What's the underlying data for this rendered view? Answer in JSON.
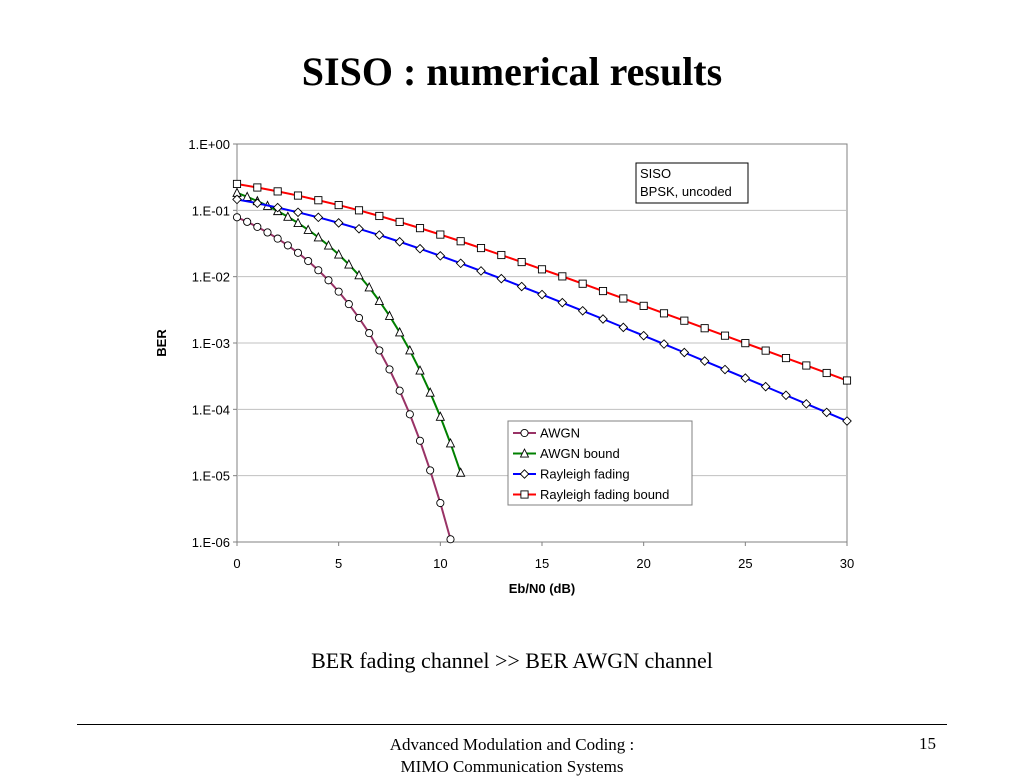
{
  "slide": {
    "title": "SISO : numerical results",
    "caption": "BER fading channel >> BER AWGN channel",
    "footer_line1": "Advanced Modulation and Coding :",
    "footer_line2": "MIMO Communication Systems",
    "page_number": "15"
  },
  "chart_data": {
    "type": "line",
    "title": "",
    "xlabel": "Eb/N0 (dB)",
    "ylabel": "BER",
    "xlim": [
      0,
      30
    ],
    "ylim": [
      1e-06,
      1
    ],
    "y_scale": "log",
    "x_ticks": [
      0,
      5,
      10,
      15,
      20,
      25,
      30
    ],
    "x_tick_labels": [
      "0",
      "5",
      "10",
      "15",
      "20",
      "25",
      "30"
    ],
    "y_ticks": [
      1,
      0.1,
      0.01,
      0.001,
      0.0001,
      1e-05,
      1e-06
    ],
    "y_tick_labels": [
      "1.E+00",
      "1.E-01",
      "1.E-02",
      "1.E-03",
      "1.E-04",
      "1.E-05",
      "1.E-06"
    ],
    "grid": "horizontal",
    "annotation": [
      "SISO",
      "BPSK, uncoded"
    ],
    "legend_position": "bottom-center",
    "series": [
      {
        "name": "AWGN",
        "color": "#993366",
        "marker": "circle",
        "x": [
          0,
          0.5,
          1,
          1.5,
          2,
          2.5,
          3,
          3.5,
          4,
          4.5,
          5,
          5.5,
          6,
          6.5,
          7,
          7.5,
          8,
          8.5,
          9,
          9.5,
          10,
          10.5
        ],
        "y": [
          0.0786,
          0.0671,
          0.0563,
          0.0464,
          0.0375,
          0.0296,
          0.0229,
          0.0172,
          0.0125,
          0.00882,
          0.00595,
          0.00386,
          0.00239,
          0.00141,
          0.000773,
          0.0004,
          0.000191,
          8.42e-05,
          3.36e-05,
          1.2e-05,
          3.87e-06,
          1.1e-06
        ]
      },
      {
        "name": "AWGN bound",
        "color": "#008000",
        "marker": "triangle",
        "x": [
          0,
          0.5,
          1,
          1.5,
          2,
          2.5,
          3,
          3.5,
          4,
          4.5,
          5,
          5.5,
          6,
          6.5,
          7,
          7.5,
          8,
          8.5,
          9,
          9.5,
          10,
          10.5,
          11
        ],
        "y": [
          0.184,
          0.16,
          0.138,
          0.117,
          0.0976,
          0.08,
          0.0644,
          0.0508,
          0.0392,
          0.0295,
          0.0216,
          0.0153,
          0.0105,
          0.0069,
          0.0043,
          0.00257,
          0.00145,
          0.000774,
          0.000385,
          0.000179,
          7.75e-05,
          3.07e-05,
          1.11e-05
        ]
      },
      {
        "name": "Rayleigh fading",
        "color": "#0000ff",
        "marker": "diamond",
        "x": [
          0,
          1,
          2,
          3,
          4,
          5,
          6,
          7,
          8,
          9,
          10,
          11,
          12,
          13,
          14,
          15,
          16,
          17,
          18,
          19,
          20,
          21,
          22,
          23,
          24,
          25,
          26,
          27,
          28,
          29,
          30
        ],
        "y": [
          0.146,
          0.128,
          0.11,
          0.0934,
          0.0784,
          0.0647,
          0.0527,
          0.0424,
          0.0336,
          0.0264,
          0.0206,
          0.0159,
          0.0122,
          0.00934,
          0.0071,
          0.00538,
          0.00406,
          0.00306,
          0.0023,
          0.00172,
          0.00129,
          0.000964,
          0.000719,
          0.000535,
          0.000398,
          0.000296,
          0.00022,
          0.000163,
          0.000121,
          8.99e-05,
          6.66e-05
        ]
      },
      {
        "name": "Rayleigh fading bound",
        "color": "#ff0000",
        "marker": "square",
        "x": [
          0,
          1,
          2,
          3,
          4,
          5,
          6,
          7,
          8,
          9,
          10,
          11,
          12,
          13,
          14,
          15,
          16,
          17,
          18,
          19,
          20,
          21,
          22,
          23,
          24,
          25,
          26,
          27,
          28,
          29,
          30
        ],
        "y": [
          0.25,
          0.221,
          0.193,
          0.167,
          0.142,
          0.12,
          0.1,
          0.0822,
          0.0669,
          0.0539,
          0.0431,
          0.0342,
          0.027,
          0.0212,
          0.0166,
          0.0129,
          0.0101,
          0.00783,
          0.00607,
          0.00469,
          0.00363,
          0.0028,
          0.00217,
          0.00167,
          0.00129,
          0.000995,
          0.000768,
          0.000593,
          0.000458,
          0.000353,
          0.000272
        ]
      }
    ]
  }
}
